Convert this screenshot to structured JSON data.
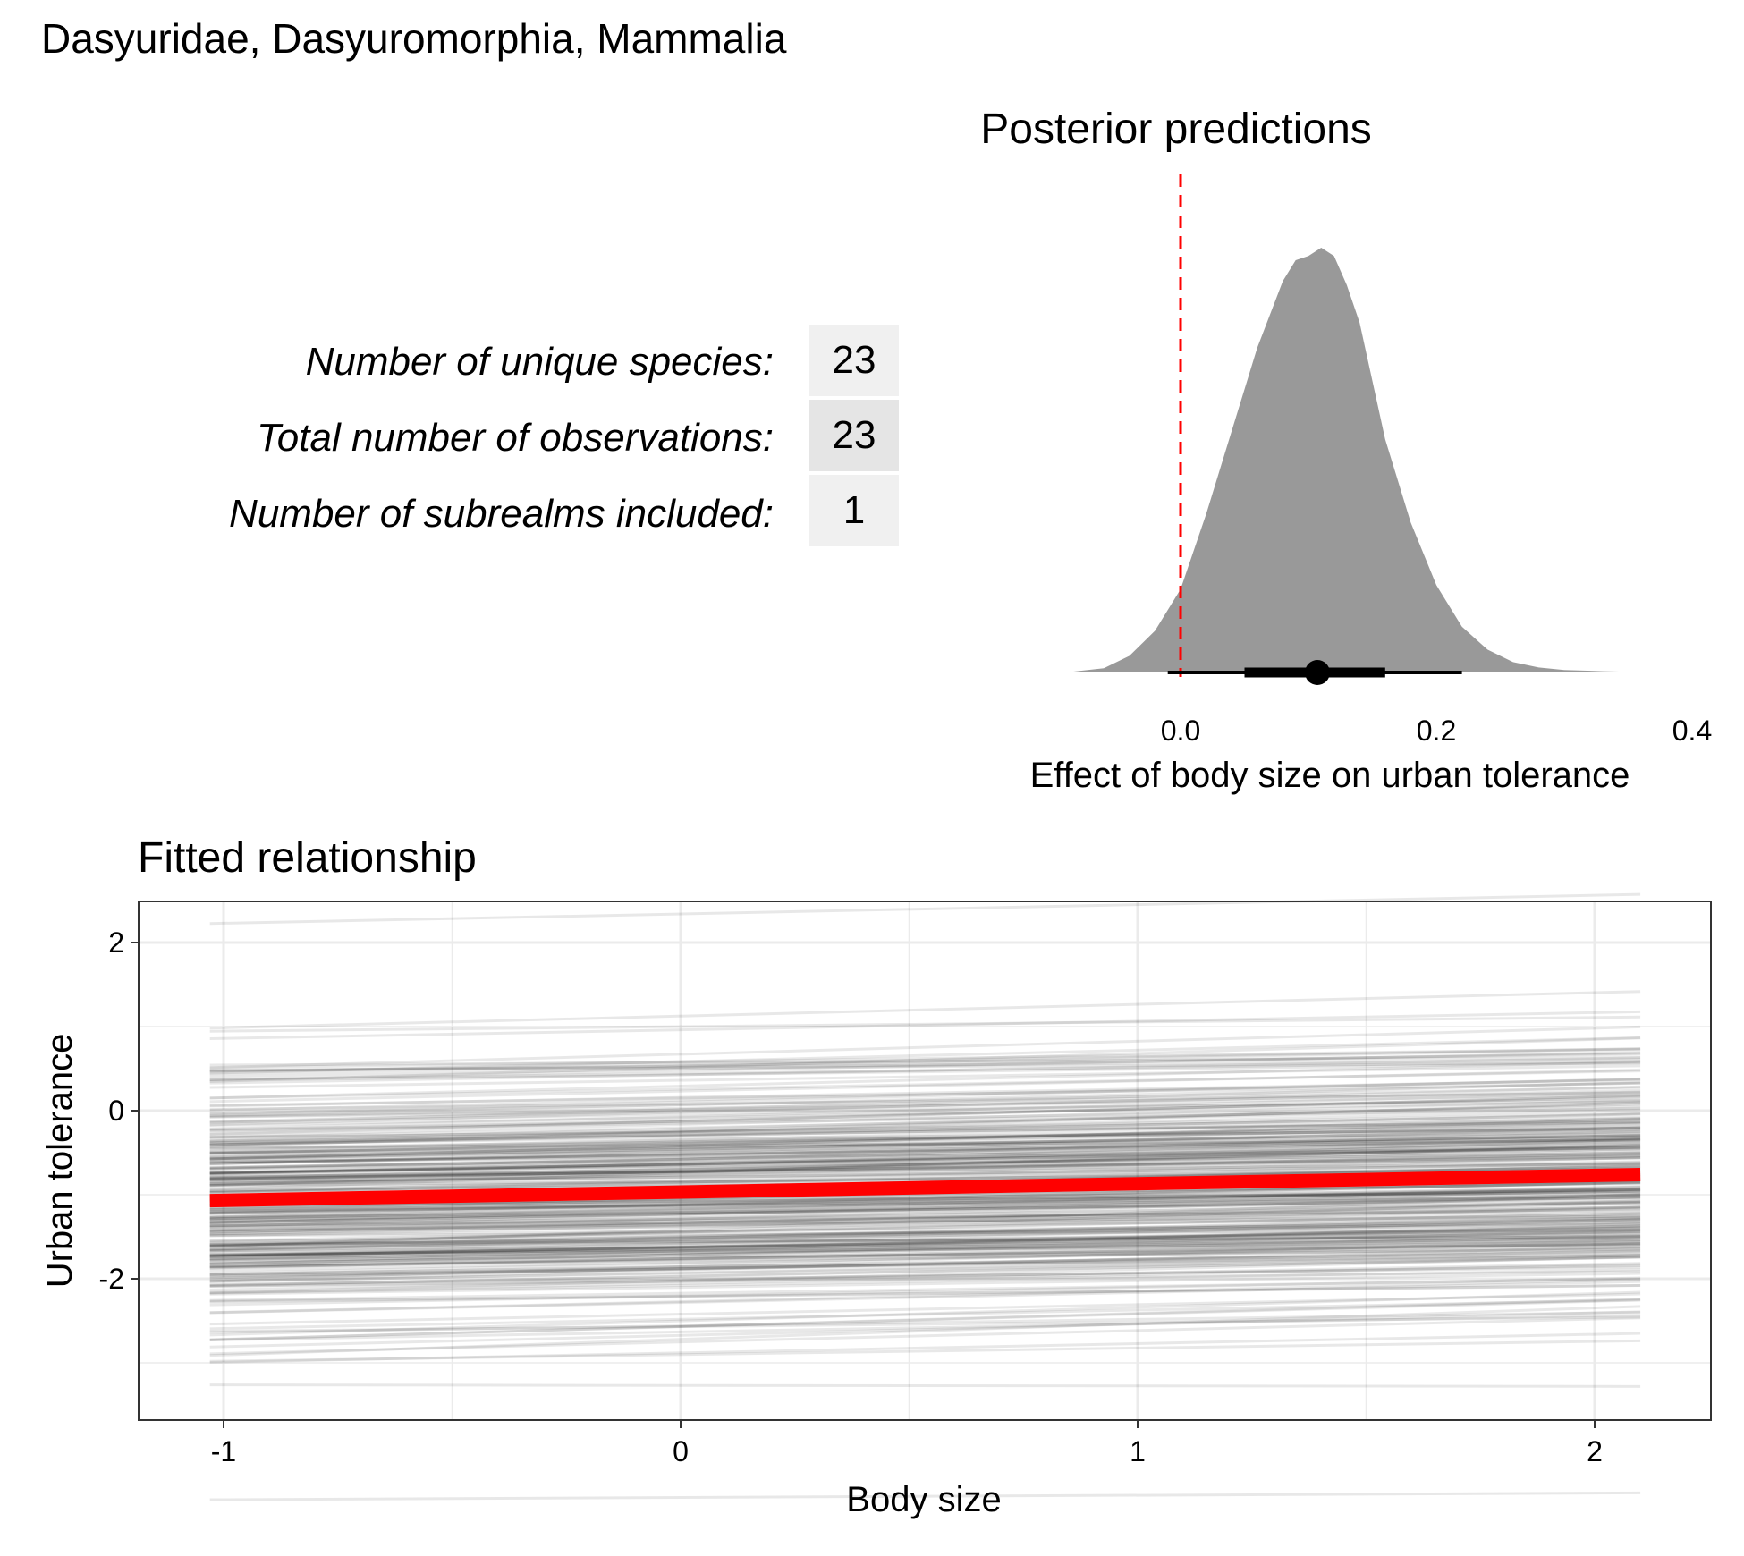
{
  "page_title": "Dasyuridae, Dasyuromorphia, Mammalia",
  "stats": [
    {
      "label": "Number of unique species:",
      "value": "23"
    },
    {
      "label": "Total number of observations:",
      "value": "23"
    },
    {
      "label": "Number of subrealms included:",
      "value": "1"
    }
  ],
  "colors": {
    "accent": "#ff0000",
    "density_fill": "#999999",
    "line": "#000000",
    "panel_grid": "#ebebeb"
  },
  "chart_data": [
    {
      "type": "area",
      "title": "Posterior predictions",
      "xlabel": "Effect of body size on urban tolerance",
      "ylabel": "",
      "xlim": [
        -0.1,
        0.4
      ],
      "x_ticks": [
        "0.0",
        "0.2",
        "0.4"
      ],
      "x_tick_values": [
        0.0,
        0.2,
        0.4
      ],
      "density": {
        "x": [
          -0.09,
          -0.06,
          -0.04,
          -0.02,
          0.0,
          0.02,
          0.04,
          0.06,
          0.08,
          0.09,
          0.1,
          0.11,
          0.12,
          0.13,
          0.14,
          0.15,
          0.16,
          0.18,
          0.2,
          0.22,
          0.24,
          0.26,
          0.28,
          0.3,
          0.33,
          0.36
        ],
        "y": [
          0.0,
          0.01,
          0.04,
          0.1,
          0.2,
          0.38,
          0.58,
          0.78,
          0.94,
          0.99,
          1.0,
          1.02,
          1.0,
          0.93,
          0.84,
          0.7,
          0.56,
          0.36,
          0.21,
          0.11,
          0.055,
          0.025,
          0.012,
          0.006,
          0.003,
          0.001
        ]
      },
      "reference_line_x": 0.0,
      "point_estimate": 0.107,
      "interval_inner": [
        0.05,
        0.16
      ],
      "interval_outer": [
        -0.01,
        0.22
      ],
      "grid": false
    },
    {
      "type": "line",
      "title": "Fitted relationship",
      "xlabel": "Body size",
      "ylabel": "Urban tolerance",
      "xlim": [
        -1.2,
        2.25
      ],
      "ylim": [
        -3.7,
        2.4
      ],
      "x_ticks": [
        "-1",
        "0",
        "1",
        "2"
      ],
      "x_tick_values": [
        -1,
        0,
        1,
        2
      ],
      "y_ticks": [
        "-2",
        "0",
        "2"
      ],
      "y_tick_values": [
        -2,
        0,
        2
      ],
      "x_range": [
        -1.03,
        2.1
      ],
      "fit": {
        "name": "",
        "x": [
          -1.03,
          2.1
        ],
        "y": [
          -1.07,
          -0.76
        ]
      },
      "posterior_draws": 300,
      "grid": true
    }
  ]
}
